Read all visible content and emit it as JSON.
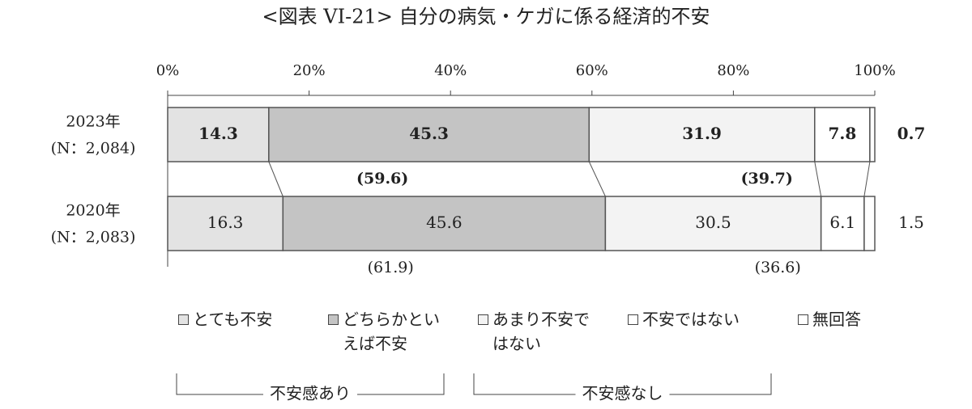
{
  "chart_data": {
    "type": "stacked-bar-horizontal",
    "title": "<図表 VI-21> 自分の病気・ケガに係る経済的不安",
    "categories": [
      "2023年",
      "2020年"
    ],
    "category_notes": [
      "(N：2,084)",
      "(N：2,083)"
    ],
    "xlim": [
      0,
      100
    ],
    "xticks": [
      {
        "value": 0,
        "label": "0%"
      },
      {
        "value": 20,
        "label": "20%"
      },
      {
        "value": 40,
        "label": "40%"
      },
      {
        "value": 60,
        "label": "60%"
      },
      {
        "value": 80,
        "label": "80%"
      },
      {
        "value": 100,
        "label": "100%"
      }
    ],
    "series": [
      {
        "name": "とても不安",
        "color": "#e3e3e3",
        "values": [
          14.3,
          16.3
        ]
      },
      {
        "name": "どちらかといえば不安",
        "color": "#c4c4c4",
        "values": [
          45.3,
          45.6
        ]
      },
      {
        "name": "あまり不安ではない",
        "color": "#f3f3f3",
        "values": [
          31.9,
          30.5
        ]
      },
      {
        "name": "不安ではない",
        "color": "#ffffff",
        "values": [
          7.8,
          6.1
        ]
      },
      {
        "name": "無回答",
        "color": "#ffffff",
        "values": [
          0.7,
          1.5
        ]
      }
    ],
    "groups": [
      {
        "name": "不安感あり",
        "values": [
          59.6,
          61.9
        ],
        "value_labels": [
          "(59.6)",
          "(61.9)"
        ]
      },
      {
        "name": "不安感なし",
        "values": [
          39.7,
          36.6
        ],
        "value_labels": [
          "(39.7)",
          "(36.6)"
        ]
      }
    ]
  }
}
